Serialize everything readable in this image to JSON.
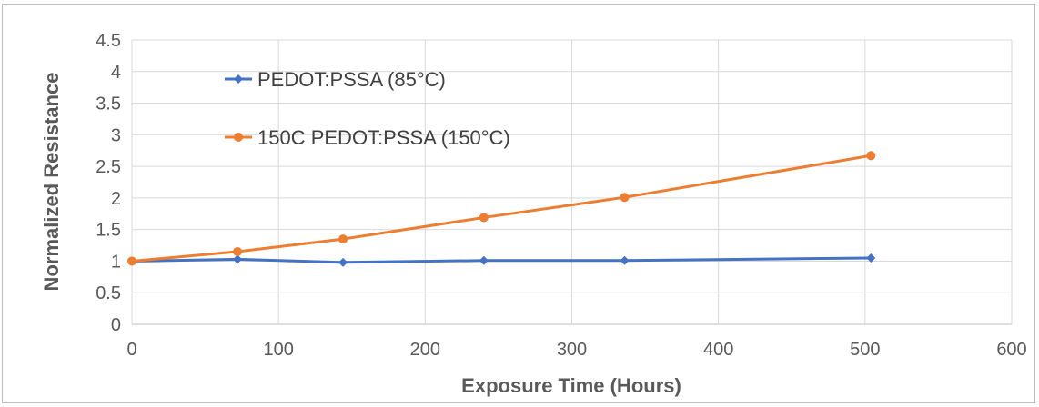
{
  "chart_data": {
    "type": "line",
    "title": "",
    "xlabel": "Exposure Time (Hours)",
    "ylabel": "Normalized Resistance",
    "xlim": [
      0,
      600
    ],
    "ylim": [
      0,
      4.5
    ],
    "xticks": [
      "0",
      "100",
      "200",
      "300",
      "400",
      "500",
      "600"
    ],
    "yticks": [
      "0",
      "0.5",
      "1",
      "1.5",
      "2",
      "2.5",
      "3",
      "3.5",
      "4",
      "4.5"
    ],
    "grid": true,
    "legend_position": "top-left",
    "series": [
      {
        "name": "PEDOT:PSSA (85°C)",
        "color": "#4472C4",
        "marker": "diamond",
        "x": [
          0,
          72,
          144,
          240,
          336,
          504
        ],
        "y": [
          1.0,
          1.03,
          0.98,
          1.01,
          1.01,
          1.05
        ]
      },
      {
        "name": "150C PEDOT:PSSA (150°C)",
        "color": "#ED7D31",
        "marker": "circle",
        "x": [
          0,
          72,
          144,
          240,
          336,
          504
        ],
        "y": [
          1.0,
          1.15,
          1.35,
          1.69,
          2.01,
          2.67
        ]
      }
    ]
  }
}
